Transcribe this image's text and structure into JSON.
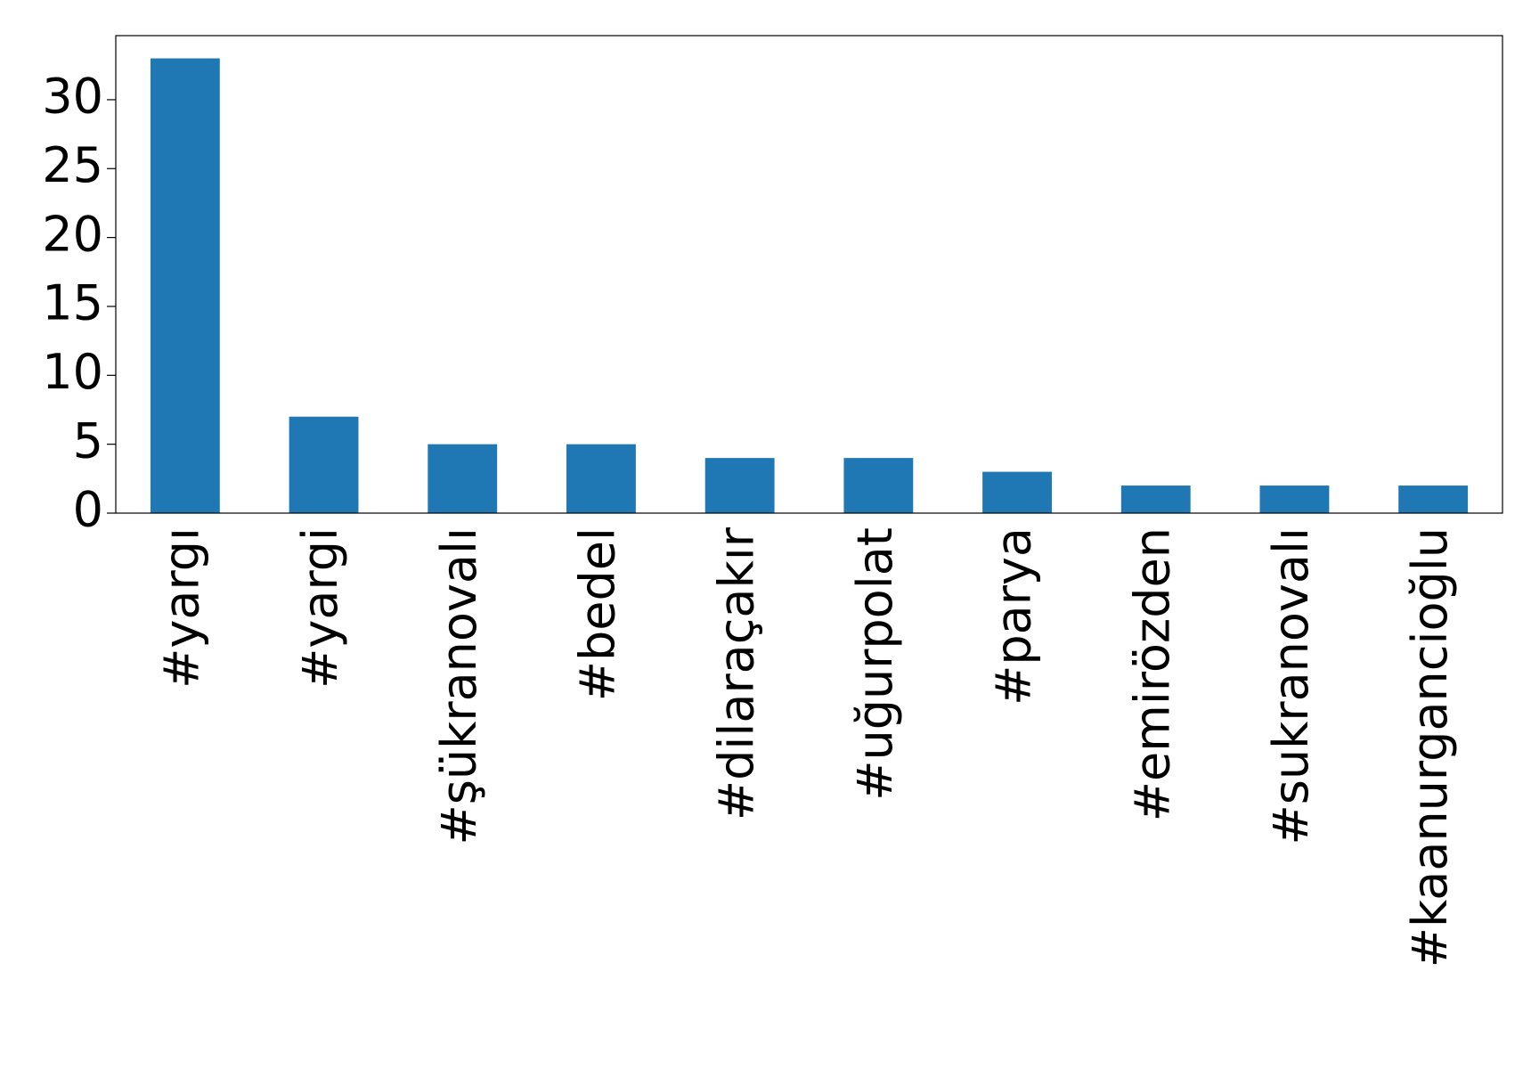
{
  "chart_data": {
    "type": "bar",
    "categories": [
      "#yargı",
      "#yargi",
      "#şükranovalı",
      "#bedel",
      "#dilaraçakır",
      "#uğurpolat",
      "#parya",
      "#emirözden",
      "#sukranovalı",
      "#kaanurgancioğlu"
    ],
    "values": [
      33,
      7,
      5,
      5,
      4,
      4,
      3,
      2,
      2,
      2
    ],
    "color": "#1f77b4",
    "ylim": [
      0,
      34.65
    ],
    "yticks": [
      0,
      5,
      10,
      15,
      20,
      25,
      30
    ],
    "grid": false
  }
}
